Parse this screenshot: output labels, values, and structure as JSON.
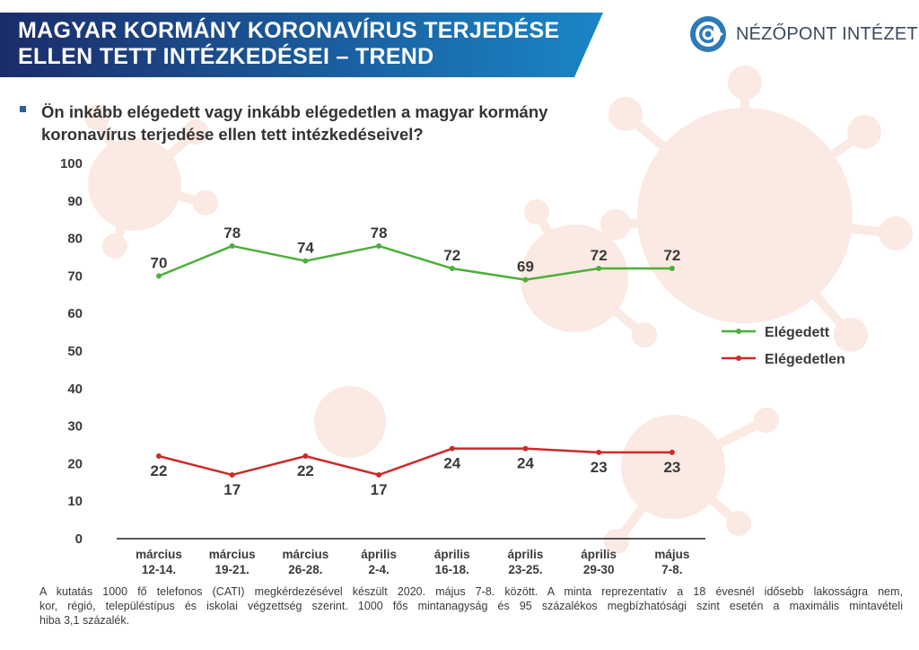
{
  "header": {
    "title_line1": "MAGYAR KORMÁNY KORONAVÍRUS TERJEDÉSE",
    "title_line2": "ELLEN TETT INTÉZKEDÉSEI – TREND",
    "brand": "NÉZŐPONT INTÉZET"
  },
  "question": {
    "line1": "Ön inkább elégedett vagy inkább elégedetlen a magyar kormány",
    "line2": "koronavírus terjedése ellen tett intézkedéseivel?"
  },
  "colors": {
    "banner_start": "#1b2c6b",
    "banner_end": "#1a86c7",
    "satisfied": "#4caf3a",
    "dissatisfied": "#cc2a2a",
    "logo_blue": "#2d7ab8"
  },
  "chart_data": {
    "type": "line",
    "categories": [
      [
        "március",
        "12-14."
      ],
      [
        "március",
        "19-21."
      ],
      [
        "március",
        "26-28."
      ],
      [
        "április",
        "2-4."
      ],
      [
        "április",
        "16-18."
      ],
      [
        "április",
        "23-25."
      ],
      [
        "április",
        "29-30"
      ],
      [
        "május",
        "7-8."
      ]
    ],
    "series": [
      {
        "name": "Elégedett",
        "values": [
          70,
          78,
          74,
          78,
          72,
          69,
          72,
          72
        ],
        "color": "#4caf3a"
      },
      {
        "name": "Elégedetlen",
        "values": [
          22,
          17,
          22,
          17,
          24,
          24,
          23,
          23
        ],
        "color": "#cc2a2a"
      }
    ],
    "yticks": [
      0,
      10,
      20,
      30,
      40,
      50,
      60,
      70,
      80,
      90,
      100
    ],
    "ylim": [
      0,
      100
    ],
    "xlabel": "",
    "ylabel": "",
    "grid": false,
    "legend_position": "right"
  },
  "footnote": {
    "line1": "A kutatás 1000 fő telefonos (CATI) megkérdezésével készült 2020. május 7-8. között. A minta reprezentatív a 18 évesnél idősebb lakosságra nem,",
    "line2": "kor, régió, településtípus és iskolai végzettség szerint. 1000 fős mintanagyság és 95 százalékos megbízhatósági szint esetén a maximális mintavételi",
    "line3": "hiba 3,1 százalék."
  }
}
